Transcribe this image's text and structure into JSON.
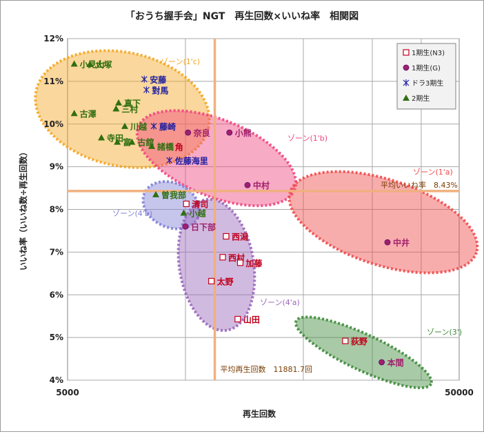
{
  "chart_data": {
    "type": "scatter",
    "title": "「おうち握手会」NGT　再生回数×いいね率　相関図",
    "xlabel": "再生回数",
    "ylabel": "いいね率（いいね数÷再生回数）",
    "x_scale": "log",
    "xlim": [
      5000,
      50000
    ],
    "ylim": [
      4,
      12
    ],
    "x_ticks": [
      "5000",
      "50000"
    ],
    "y_ticks": [
      "4%",
      "5%",
      "6%",
      "7%",
      "8%",
      "9%",
      "10%",
      "11%",
      "12%"
    ],
    "grid": true,
    "legend_placement": "top-right",
    "reference_lines": {
      "avg_x": {
        "value": 11881.7,
        "label": "平均再生回数　11881.7回"
      },
      "avg_y": {
        "value": 8.43,
        "label": "平均いいね率　8.43%"
      }
    },
    "series": [
      {
        "name": "1期生(N3)",
        "marker": "open-square",
        "color": "#c0001c",
        "points": [
          {
            "label": "清司",
            "x": 10050,
            "y": 8.13
          },
          {
            "label": "西潟",
            "x": 12700,
            "y": 7.37
          },
          {
            "label": "西村",
            "x": 12450,
            "y": 6.88
          },
          {
            "label": "加藤",
            "x": 13800,
            "y": 6.75
          },
          {
            "label": "太野",
            "x": 11650,
            "y": 6.32
          },
          {
            "label": "山田",
            "x": 13600,
            "y": 5.43
          },
          {
            "label": "荻野",
            "x": 25600,
            "y": 4.92
          }
        ]
      },
      {
        "name": "1期生(G)",
        "marker": "filled-circle",
        "color": "#a0206c",
        "points": [
          {
            "label": "奈良",
            "x": 10150,
            "y": 9.8
          },
          {
            "label": "小熊",
            "x": 12950,
            "y": 9.8
          },
          {
            "label": "中村",
            "x": 14400,
            "y": 8.57
          },
          {
            "label": "日下部",
            "x": 10000,
            "y": 7.6
          },
          {
            "label": "中井",
            "x": 32800,
            "y": 7.23
          },
          {
            "label": "本間",
            "x": 31700,
            "y": 4.42
          }
        ]
      },
      {
        "name": "ドラ3期生",
        "marker": "asterisk",
        "color": "#2020a0",
        "points": [
          {
            "label": "安藤",
            "x": 7850,
            "y": 11.05
          },
          {
            "label": "對馬",
            "x": 7950,
            "y": 10.8
          },
          {
            "label": "藤崎",
            "x": 8300,
            "y": 9.95
          },
          {
            "label": "佐藤海里",
            "x": 9100,
            "y": 9.15
          }
        ]
      },
      {
        "name": "2期生",
        "marker": "filled-triangle",
        "color": "#2f6f10",
        "points": [
          {
            "label": "小見山",
            "x": 5200,
            "y": 11.41
          },
          {
            "label": "大塚",
            "x": 5700,
            "y": 11.4
          },
          {
            "label": "真下",
            "x": 6750,
            "y": 10.5
          },
          {
            "label": "三村",
            "x": 6650,
            "y": 10.36
          },
          {
            "label": "古澤",
            "x": 5200,
            "y": 10.25
          },
          {
            "label": "川越",
            "x": 7000,
            "y": 9.95
          },
          {
            "label": "寺田",
            "x": 6100,
            "y": 9.68
          },
          {
            "label": "富",
            "x": 6700,
            "y": 9.58
          },
          {
            "label": "古舘",
            "x": 7300,
            "y": 9.58
          },
          {
            "label": "諸橋",
            "x": 8200,
            "y": 9.48
          },
          {
            "label": "曽我部",
            "x": 8400,
            "y": 8.35
          },
          {
            "label": "小越",
            "x": 9900,
            "y": 7.92
          }
        ]
      }
    ],
    "point_labels_extra": [
      {
        "text": "角",
        "x": 9100,
        "y": 9.47,
        "color": "#c0001c"
      }
    ],
    "zones": [
      {
        "label": "ゾーン(1'c)",
        "color": "#f4a623",
        "cx": 6900,
        "cy": 10.35
      },
      {
        "label": "ゾーン(1'b)",
        "color": "#f0457e",
        "cx": 12000,
        "cy": 9.2
      },
      {
        "label": "ゾーン(1'a)",
        "color": "#f04a4a",
        "cx": 32000,
        "cy": 7.7
      },
      {
        "label": "ゾーン(4'b)",
        "color": "#8080d8",
        "cx": 9200,
        "cy": 8.1
      },
      {
        "label": "ゾーン(4'a)",
        "color": "#9966bb",
        "cx": 12000,
        "cy": 6.7
      },
      {
        "label": "ゾーン(3')",
        "color": "#3d8a3a",
        "cx": 28500,
        "cy": 4.65
      }
    ]
  }
}
